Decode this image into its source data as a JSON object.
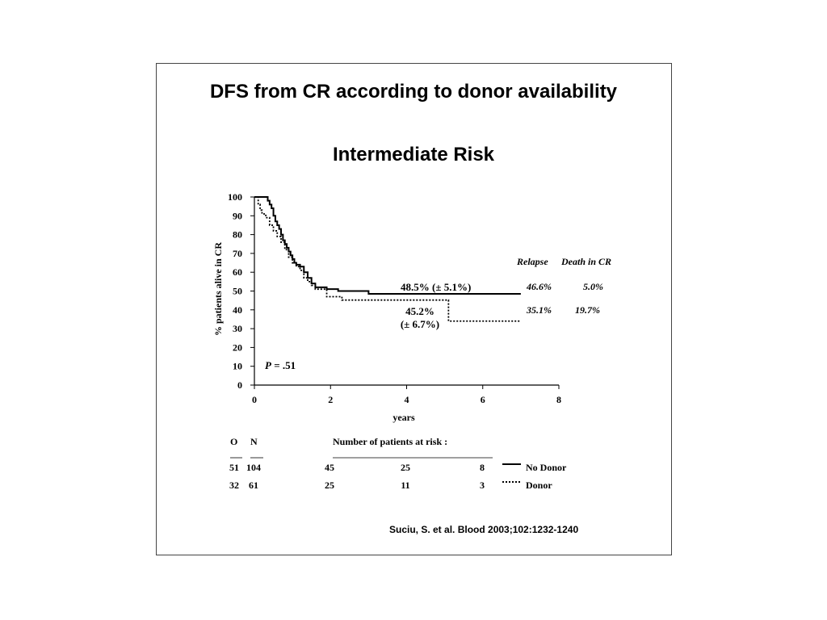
{
  "slide": {
    "title": "DFS from CR according to donor availability",
    "subtitle": "Intermediate Risk",
    "citation": "Suciu, S. et al. Blood 2003;102:1232-1240"
  },
  "chart_data": {
    "type": "line",
    "xlabel": "years",
    "ylabel": "% patients alive in CR",
    "xlim": [
      0,
      8
    ],
    "ylim": [
      0,
      100
    ],
    "xticks": [
      "0",
      "2",
      "4",
      "6",
      "8"
    ],
    "yticks": [
      "0",
      "10",
      "20",
      "30",
      "40",
      "50",
      "60",
      "70",
      "80",
      "90",
      "100"
    ],
    "grid": false,
    "pvalue_label": "P",
    "pvalue_text": " = .51",
    "series": [
      {
        "name": "No Donor",
        "style": "solid",
        "step_points": [
          [
            0,
            100
          ],
          [
            0.3,
            100
          ],
          [
            0.35,
            98
          ],
          [
            0.4,
            96
          ],
          [
            0.45,
            94
          ],
          [
            0.5,
            90
          ],
          [
            0.55,
            87
          ],
          [
            0.6,
            85
          ],
          [
            0.65,
            83
          ],
          [
            0.7,
            80
          ],
          [
            0.75,
            77
          ],
          [
            0.8,
            75
          ],
          [
            0.85,
            73
          ],
          [
            0.9,
            71
          ],
          [
            0.95,
            69
          ],
          [
            1.0,
            67
          ],
          [
            1.05,
            65
          ],
          [
            1.1,
            64
          ],
          [
            1.2,
            63
          ],
          [
            1.3,
            60
          ],
          [
            1.4,
            57
          ],
          [
            1.5,
            54
          ],
          [
            1.6,
            52
          ],
          [
            1.9,
            51
          ],
          [
            2.2,
            50
          ],
          [
            3.0,
            48.5
          ],
          [
            7.0,
            48.5
          ]
        ],
        "estimate_label": "48.5% (± 5.1%)",
        "relapse": "46.6%",
        "death_in_cr": "5.0%",
        "O": "51",
        "N": "104",
        "at_risk": [
          "45",
          "25",
          "8"
        ]
      },
      {
        "name": "Donor",
        "style": "dotted",
        "step_points": [
          [
            0,
            100
          ],
          [
            0.1,
            96
          ],
          [
            0.15,
            93
          ],
          [
            0.2,
            91
          ],
          [
            0.3,
            89
          ],
          [
            0.4,
            85
          ],
          [
            0.5,
            82
          ],
          [
            0.6,
            79
          ],
          [
            0.7,
            76
          ],
          [
            0.8,
            72
          ],
          [
            0.9,
            68
          ],
          [
            1.0,
            65
          ],
          [
            1.1,
            63
          ],
          [
            1.2,
            61
          ],
          [
            1.3,
            57
          ],
          [
            1.4,
            55
          ],
          [
            1.5,
            53
          ],
          [
            1.6,
            51
          ],
          [
            1.8,
            51
          ],
          [
            1.9,
            47
          ],
          [
            2.3,
            45.2
          ],
          [
            5.1,
            45.2
          ],
          [
            5.1,
            34
          ],
          [
            7.0,
            34
          ]
        ],
        "estimate_label_line1": "45.2%",
        "estimate_label_line2": "(± 6.7%)",
        "relapse": "35.1%",
        "death_in_cr": "19.7%",
        "O": "32",
        "N": "61",
        "at_risk": [
          "25",
          "11",
          "3"
        ]
      }
    ],
    "outcome_header_relapse": "Relapse",
    "outcome_header_death": "Death in CR",
    "risk_table": {
      "col_o": "O",
      "col_n": "N",
      "header": "Number of patients at risk :"
    }
  }
}
